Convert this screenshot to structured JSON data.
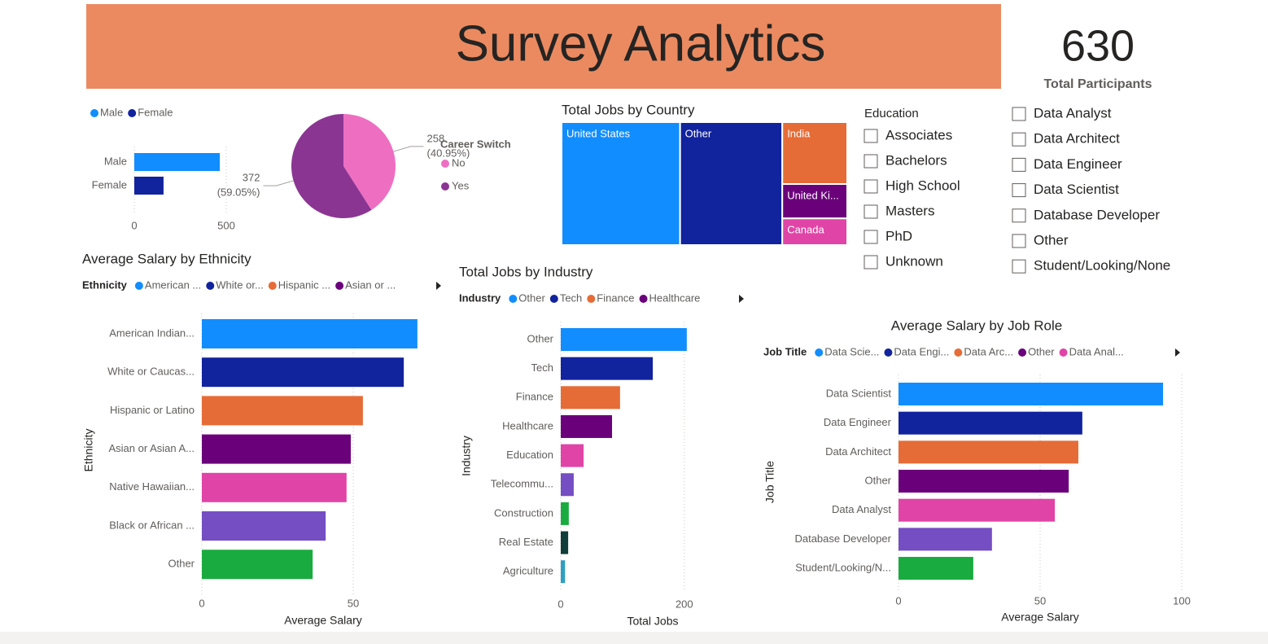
{
  "header": {
    "title": "Survey Analytics"
  },
  "card": {
    "value": 630,
    "label": "Total Participants"
  },
  "slicers": [
    {
      "title": "Education",
      "items": [
        "Associates",
        "Bachelors",
        "High School",
        "Masters",
        "PhD",
        "Unknown"
      ]
    },
    {
      "items": [
        "Data Analyst",
        "Data Architect",
        "Data Engineer",
        "Data Scientist",
        "Database Developer",
        "Other",
        "Student/Looking/None"
      ]
    }
  ],
  "chart_data": [
    {
      "type": "bar",
      "orientation": "horizontal",
      "legend": "top-left",
      "categories": [
        "Male",
        "Female"
      ],
      "values": [
        465,
        159
      ],
      "colors": [
        "#118dff",
        "#12239e"
      ],
      "xlim": [
        0,
        500
      ],
      "xticks": [
        0,
        500
      ],
      "grid": true
    },
    {
      "type": "pie",
      "legend": {
        "title": "Career Switch"
      },
      "categories": [
        "No",
        "Yes"
      ],
      "values": [
        258,
        372
      ],
      "value_labels": [
        [
          "258",
          "(40.95%)"
        ],
        [
          "372",
          "(59.05%)"
        ]
      ],
      "colors": [
        "#ee6fc1",
        "#8b3593"
      ]
    },
    {
      "type": "treemap",
      "title": "Total Jobs by Country",
      "categories": [
        "United States",
        "Other",
        "India",
        "United Ki...",
        "Canada"
      ],
      "values": [
        261,
        225,
        72,
        40,
        31
      ],
      "colors": [
        "#118dff",
        "#12239e",
        "#e66c37",
        "#6b007b",
        "#e044a7"
      ]
    },
    {
      "type": "bar",
      "orientation": "horizontal",
      "title": "Average Salary by Ethnicity",
      "xlabel": "Average Salary",
      "ylabel": "Ethnicity",
      "legend": {
        "title": "Ethnicity",
        "items": [
          "American ...",
          "White or...",
          "Hispanic ...",
          "Asian or ..."
        ]
      },
      "categories": [
        "American Indian...",
        "White or Caucas...",
        "Hispanic or Latino",
        "Asian or Asian A...",
        "Native Hawaiian...",
        "Black or African ...",
        "Other"
      ],
      "values": [
        71.2,
        66.7,
        53.2,
        49.2,
        47.8,
        40.9,
        36.6
      ],
      "colors": [
        "#118dff",
        "#12239e",
        "#e66c37",
        "#6b007b",
        "#e044a7",
        "#744ec2",
        "#1aab40"
      ],
      "xlim": [
        0,
        75
      ],
      "xticks": [
        0,
        50
      ],
      "grid": true
    },
    {
      "type": "bar",
      "orientation": "horizontal",
      "title": "Total Jobs by Industry",
      "xlabel": "Total Jobs",
      "ylabel": "Industry",
      "legend": {
        "title": "Industry",
        "items": [
          "Other",
          "Tech",
          "Finance",
          "Healthcare"
        ]
      },
      "categories": [
        "Other",
        "Tech",
        "Finance",
        "Healthcare",
        "Education",
        "Telecommu...",
        "Construction",
        "Real Estate",
        "Agriculture"
      ],
      "values": [
        204,
        149,
        96,
        83,
        37,
        21,
        13,
        12,
        7
      ],
      "colors": [
        "#118dff",
        "#12239e",
        "#e66c37",
        "#6b007b",
        "#e044a7",
        "#744ec2",
        "#1aab40",
        "#0f3d3a",
        "#2f9fc1"
      ],
      "xlim": [
        0,
        220
      ],
      "xticks": [
        0,
        200
      ],
      "grid": true
    },
    {
      "type": "bar",
      "orientation": "horizontal",
      "title": "Average Salary by Job Role",
      "xlabel": "Average Salary",
      "ylabel": "Job Title",
      "legend": {
        "title": "Job Title",
        "items": [
          "Data Scie...",
          "Data Engi...",
          "Data Arc...",
          "Other",
          "Data Anal..."
        ]
      },
      "categories": [
        "Data Scientist",
        "Data Engineer",
        "Data Architect",
        "Other",
        "Data Analyst",
        "Database Developer",
        "Student/Looking/N..."
      ],
      "values": [
        93.4,
        64.9,
        63.5,
        60.1,
        55.2,
        33.0,
        26.4
      ],
      "colors": [
        "#118dff",
        "#12239e",
        "#e66c37",
        "#6b007b",
        "#e044a7",
        "#744ec2",
        "#1aab40"
      ],
      "xlim": [
        0,
        100
      ],
      "xticks": [
        0,
        50,
        100
      ],
      "grid": true
    }
  ]
}
